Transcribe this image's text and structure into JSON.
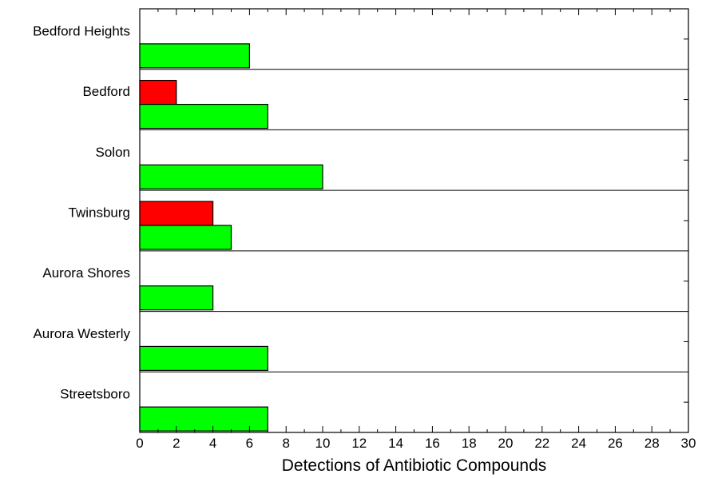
{
  "chart_data": {
    "type": "bar",
    "orientation": "horizontal",
    "categories": [
      "Bedford Heights",
      "Bedford",
      "Solon",
      "Twinsburg",
      "Aurora Shores",
      "Aurora Westerly",
      "Streetsboro"
    ],
    "series": [
      {
        "color": "#ff0000",
        "values": [
          0,
          2,
          0,
          4,
          0,
          0,
          0
        ]
      },
      {
        "color": "#00ff00",
        "values": [
          6,
          7,
          10,
          5,
          4,
          7,
          7
        ]
      }
    ],
    "xlabel": "Detections of Antibiotic Compounds",
    "ylabel": "",
    "title": "",
    "xlim": [
      0,
      30
    ],
    "xticks": [
      0,
      2,
      4,
      6,
      8,
      10,
      12,
      14,
      16,
      18,
      20,
      22,
      24,
      26,
      28,
      30
    ],
    "grid": "horizontal separators between categories",
    "legend": "none"
  }
}
